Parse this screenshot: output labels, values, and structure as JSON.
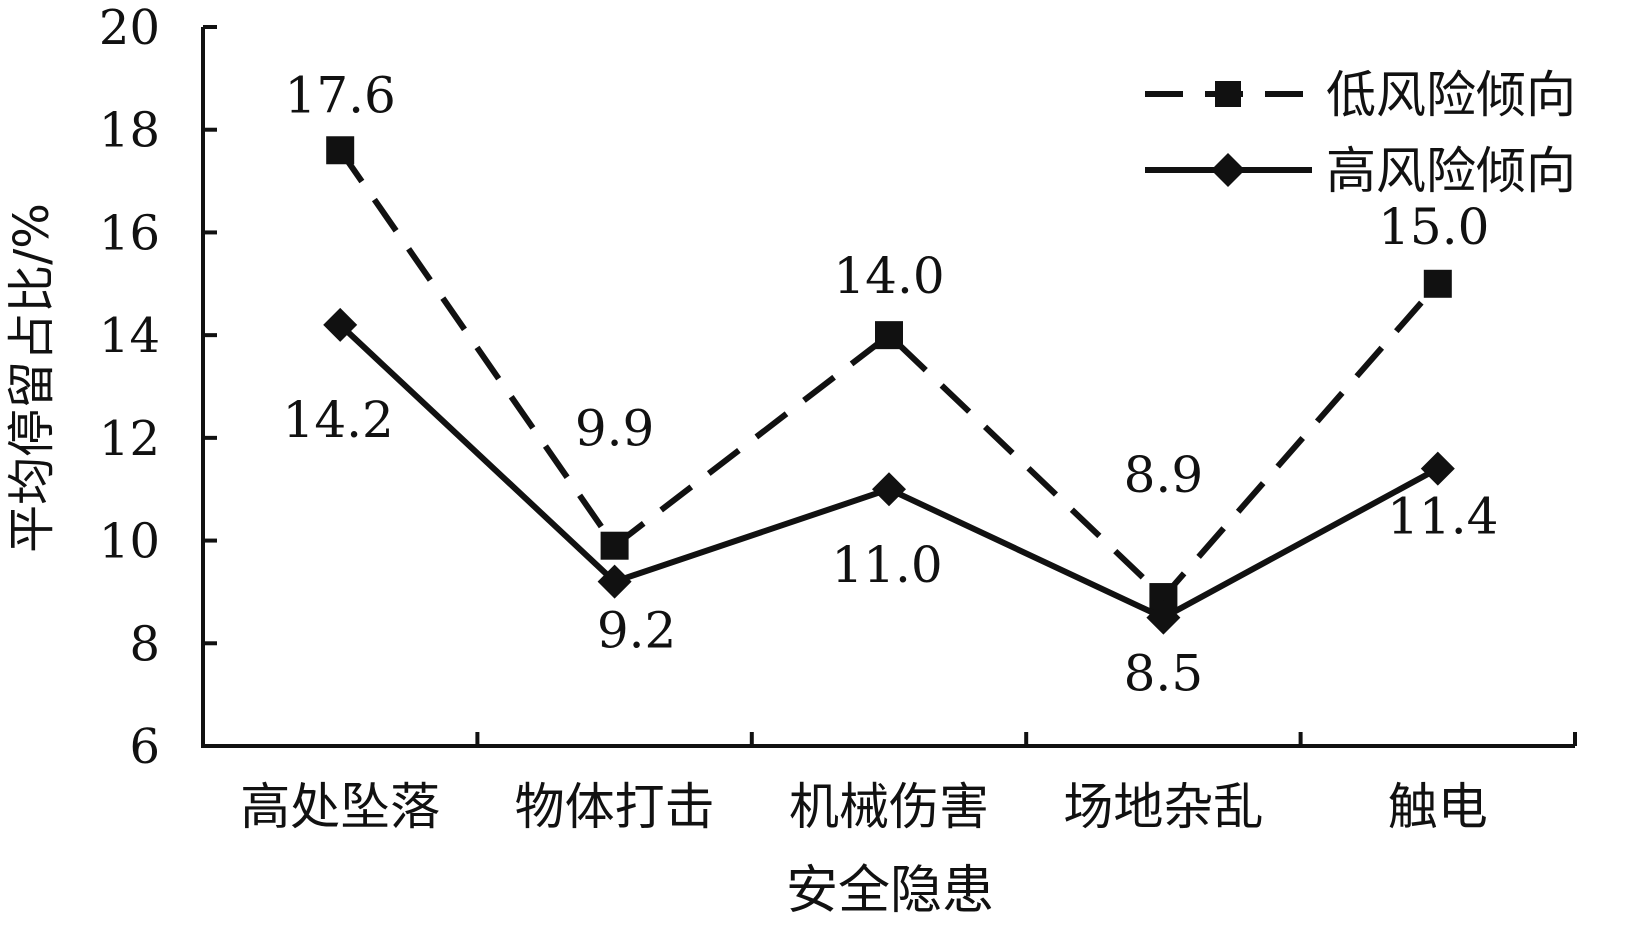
{
  "chart_data": {
    "type": "line",
    "title": "",
    "xlabel": "安全隐患",
    "ylabel": "平均停留占比/%",
    "categories": [
      "高处坠落",
      "物体打击",
      "机械伤害",
      "场地杂乱",
      "触电"
    ],
    "ylim": [
      6,
      20
    ],
    "yticks": [
      "6",
      "8",
      "10",
      "12",
      "14",
      "16",
      "18",
      "20"
    ],
    "grid": false,
    "legend_position": "top-right",
    "series": [
      {
        "name": "低风险倾向",
        "values": [
          17.6,
          9.9,
          14.0,
          8.9,
          15.0
        ],
        "labels": [
          "17.6",
          "9.9",
          "14.0",
          "8.9",
          "15.0"
        ],
        "line_style": "dashed",
        "marker": "square",
        "color": "#111111"
      },
      {
        "name": "高风险倾向",
        "values": [
          14.2,
          9.2,
          11.0,
          8.5,
          11.4
        ],
        "labels": [
          "14.2",
          "9.2",
          "11.0",
          "8.5",
          "11.4"
        ],
        "line_style": "solid",
        "marker": "diamond",
        "color": "#111111"
      }
    ]
  }
}
